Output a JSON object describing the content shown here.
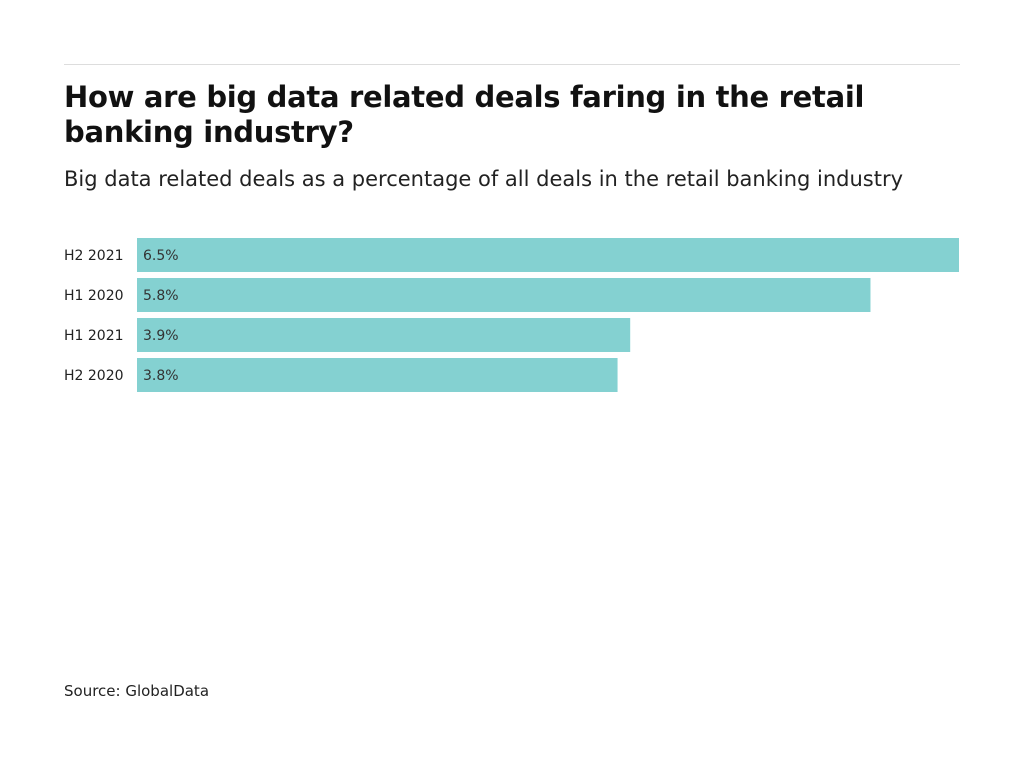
{
  "chart_data": {
    "type": "bar",
    "orientation": "horizontal",
    "title": "How are big data related deals faring in the retail banking industry?",
    "subtitle": "Big data related deals as a percentage of all deals in the retail banking industry",
    "categories": [
      "H2 2021",
      "H1 2020",
      "H1 2021",
      "H2 2020"
    ],
    "values": [
      6.5,
      5.8,
      3.9,
      3.8
    ],
    "value_labels": [
      "6.5%",
      "5.8%",
      "3.9%",
      "3.8%"
    ],
    "xlim": [
      0,
      6.5
    ],
    "grid": false,
    "bar_color": "#84d1d1",
    "source": "Source: GlobalData"
  }
}
